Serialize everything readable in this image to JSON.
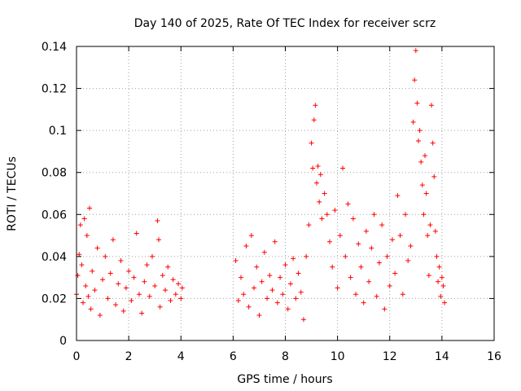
{
  "chart_data": {
    "type": "scatter",
    "title": "Day 140 of 2025, Rate Of TEC Index for receiver scrz",
    "xlabel": "GPS time / hours",
    "ylabel": "ROTI / TECUs",
    "xlim": [
      0,
      16
    ],
    "ylim": [
      0,
      0.14
    ],
    "xticks": [
      0,
      2,
      4,
      6,
      8,
      10,
      12,
      14,
      16
    ],
    "yticks": [
      0,
      0.02,
      0.04,
      0.06,
      0.08,
      0.1,
      0.12,
      0.14
    ],
    "xtick_labels": [
      "0",
      "2",
      "4",
      "6",
      "8",
      "10",
      "12",
      "14",
      "16"
    ],
    "ytick_labels": [
      "0",
      "0.02",
      "0.04",
      "0.06",
      "0.08",
      "0.1",
      "0.12",
      "0.14"
    ],
    "grid": true,
    "marker": "+",
    "color": "#ff0000",
    "series": [
      {
        "name": "ROTI",
        "note": "Dense cloud of '+' markers; representative estimated points read from plot",
        "points": [
          [
            0.0,
            0.022
          ],
          [
            0.05,
            0.031
          ],
          [
            0.1,
            0.041
          ],
          [
            0.15,
            0.055
          ],
          [
            0.2,
            0.036
          ],
          [
            0.25,
            0.018
          ],
          [
            0.3,
            0.058
          ],
          [
            0.35,
            0.026
          ],
          [
            0.4,
            0.05
          ],
          [
            0.45,
            0.021
          ],
          [
            0.5,
            0.063
          ],
          [
            0.55,
            0.015
          ],
          [
            0.6,
            0.033
          ],
          [
            0.7,
            0.024
          ],
          [
            0.8,
            0.044
          ],
          [
            0.9,
            0.012
          ],
          [
            1.0,
            0.029
          ],
          [
            1.1,
            0.04
          ],
          [
            1.2,
            0.02
          ],
          [
            1.3,
            0.032
          ],
          [
            1.4,
            0.048
          ],
          [
            1.5,
            0.017
          ],
          [
            1.6,
            0.027
          ],
          [
            1.7,
            0.038
          ],
          [
            1.8,
            0.014
          ],
          [
            1.9,
            0.025
          ],
          [
            2.0,
            0.033
          ],
          [
            2.1,
            0.019
          ],
          [
            2.2,
            0.03
          ],
          [
            2.3,
            0.051
          ],
          [
            2.4,
            0.022
          ],
          [
            2.5,
            0.013
          ],
          [
            2.6,
            0.028
          ],
          [
            2.7,
            0.036
          ],
          [
            2.8,
            0.021
          ],
          [
            2.9,
            0.04
          ],
          [
            3.0,
            0.026
          ],
          [
            3.1,
            0.057
          ],
          [
            3.15,
            0.048
          ],
          [
            3.2,
            0.016
          ],
          [
            3.3,
            0.031
          ],
          [
            3.4,
            0.024
          ],
          [
            3.5,
            0.035
          ],
          [
            3.6,
            0.019
          ],
          [
            3.7,
            0.029
          ],
          [
            3.8,
            0.022
          ],
          [
            3.9,
            0.027
          ],
          [
            4.0,
            0.02
          ],
          [
            4.05,
            0.025
          ],
          [
            6.1,
            0.038
          ],
          [
            6.2,
            0.019
          ],
          [
            6.3,
            0.03
          ],
          [
            6.4,
            0.022
          ],
          [
            6.5,
            0.045
          ],
          [
            6.6,
            0.016
          ],
          [
            6.7,
            0.05
          ],
          [
            6.8,
            0.025
          ],
          [
            6.9,
            0.035
          ],
          [
            7.0,
            0.012
          ],
          [
            7.1,
            0.028
          ],
          [
            7.2,
            0.042
          ],
          [
            7.3,
            0.02
          ],
          [
            7.4,
            0.031
          ],
          [
            7.5,
            0.024
          ],
          [
            7.6,
            0.047
          ],
          [
            7.7,
            0.018
          ],
          [
            7.8,
            0.03
          ],
          [
            7.9,
            0.022
          ],
          [
            8.0,
            0.036
          ],
          [
            8.1,
            0.015
          ],
          [
            8.2,
            0.027
          ],
          [
            8.3,
            0.039
          ],
          [
            8.4,
            0.02
          ],
          [
            8.5,
            0.032
          ],
          [
            8.6,
            0.023
          ],
          [
            8.7,
            0.01
          ],
          [
            8.8,
            0.04
          ],
          [
            8.9,
            0.055
          ],
          [
            9.0,
            0.094
          ],
          [
            9.05,
            0.082
          ],
          [
            9.1,
            0.105
          ],
          [
            9.15,
            0.112
          ],
          [
            9.2,
            0.075
          ],
          [
            9.25,
            0.083
          ],
          [
            9.3,
            0.066
          ],
          [
            9.35,
            0.079
          ],
          [
            9.4,
            0.058
          ],
          [
            9.5,
            0.07
          ],
          [
            9.6,
            0.06
          ],
          [
            9.7,
            0.047
          ],
          [
            9.8,
            0.035
          ],
          [
            9.9,
            0.062
          ],
          [
            10.0,
            0.025
          ],
          [
            10.1,
            0.05
          ],
          [
            10.2,
            0.082
          ],
          [
            10.3,
            0.04
          ],
          [
            10.4,
            0.065
          ],
          [
            10.5,
            0.03
          ],
          [
            10.6,
            0.058
          ],
          [
            10.7,
            0.022
          ],
          [
            10.8,
            0.046
          ],
          [
            10.9,
            0.035
          ],
          [
            11.0,
            0.018
          ],
          [
            11.1,
            0.052
          ],
          [
            11.2,
            0.028
          ],
          [
            11.3,
            0.044
          ],
          [
            11.4,
            0.06
          ],
          [
            11.5,
            0.021
          ],
          [
            11.6,
            0.037
          ],
          [
            11.7,
            0.055
          ],
          [
            11.8,
            0.015
          ],
          [
            11.9,
            0.04
          ],
          [
            12.0,
            0.026
          ],
          [
            12.1,
            0.048
          ],
          [
            12.2,
            0.032
          ],
          [
            12.3,
            0.069
          ],
          [
            12.4,
            0.05
          ],
          [
            12.5,
            0.022
          ],
          [
            12.6,
            0.06
          ],
          [
            12.7,
            0.038
          ],
          [
            12.8,
            0.045
          ],
          [
            12.9,
            0.104
          ],
          [
            12.95,
            0.124
          ],
          [
            13.0,
            0.138
          ],
          [
            13.05,
            0.113
          ],
          [
            13.1,
            0.095
          ],
          [
            13.15,
            0.1
          ],
          [
            13.2,
            0.085
          ],
          [
            13.25,
            0.074
          ],
          [
            13.3,
            0.06
          ],
          [
            13.35,
            0.088
          ],
          [
            13.4,
            0.07
          ],
          [
            13.45,
            0.05
          ],
          [
            13.5,
            0.031
          ],
          [
            13.55,
            0.055
          ],
          [
            13.6,
            0.112
          ],
          [
            13.65,
            0.094
          ],
          [
            13.7,
            0.078
          ],
          [
            13.75,
            0.052
          ],
          [
            13.8,
            0.04
          ],
          [
            13.85,
            0.028
          ],
          [
            13.9,
            0.035
          ],
          [
            13.95,
            0.021
          ],
          [
            14.0,
            0.03
          ],
          [
            14.05,
            0.026
          ],
          [
            14.1,
            0.018
          ]
        ]
      }
    ]
  }
}
